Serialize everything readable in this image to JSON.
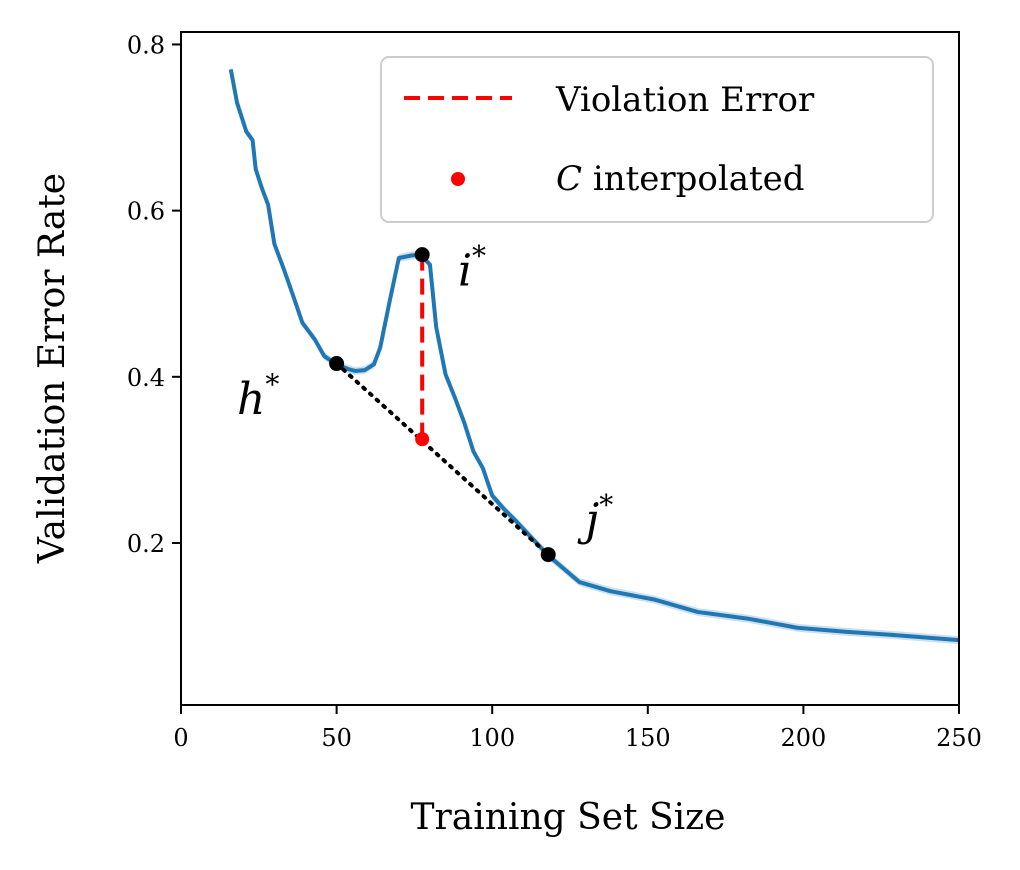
{
  "chart_data": {
    "type": "line",
    "xlabel": "Training Set Size",
    "ylabel": "Validation Error Rate",
    "xlim": [
      0,
      250
    ],
    "ylim": [
      0.005,
      0.815
    ],
    "xticks": [
      0,
      50,
      100,
      150,
      200,
      250
    ],
    "yticks": [
      0.2,
      0.4,
      0.6,
      0.8
    ],
    "xtick_labels": [
      "0",
      "50",
      "100",
      "150",
      "200",
      "250"
    ],
    "ytick_labels": [
      "0.2",
      "0.4",
      "0.6",
      "0.8"
    ],
    "grid": false,
    "legend_position": "top-right",
    "colors": {
      "curve": "#1f77b4",
      "band": "#b9d2e8",
      "violation": "#ff0000",
      "points": "#000000",
      "interp": "#ff0000"
    },
    "series": [
      {
        "name": "validation error",
        "x": [
          16,
          18,
          21,
          23,
          24,
          26,
          28,
          30,
          33,
          36,
          39,
          43,
          46,
          50,
          54,
          56,
          59,
          62,
          64,
          67,
          70,
          74,
          77,
          80,
          82,
          85,
          88,
          91,
          94,
          97,
          100,
          104,
          108,
          113,
          118,
          128,
          138,
          152,
          166,
          182,
          198,
          214,
          230,
          250
        ],
        "y": [
          0.77,
          0.73,
          0.695,
          0.685,
          0.65,
          0.627,
          0.607,
          0.56,
          0.53,
          0.498,
          0.465,
          0.445,
          0.425,
          0.415,
          0.409,
          0.407,
          0.408,
          0.415,
          0.435,
          0.49,
          0.543,
          0.546,
          0.547,
          0.535,
          0.46,
          0.403,
          0.375,
          0.345,
          0.31,
          0.29,
          0.257,
          0.24,
          0.225,
          0.205,
          0.185,
          0.153,
          0.142,
          0.132,
          0.117,
          0.109,
          0.098,
          0.093,
          0.089,
          0.083
        ]
      }
    ],
    "points": [
      {
        "name": "h",
        "label": "h",
        "sup": "*",
        "x": 50,
        "y": 0.416,
        "label_x": 18,
        "label_y": 0.355
      },
      {
        "name": "i",
        "label": "i",
        "sup": "*",
        "x": 77.5,
        "y": 0.547,
        "label_x": 89,
        "label_y": 0.51
      },
      {
        "name": "j",
        "label": "j",
        "sup": "*",
        "x": 118,
        "y": 0.186,
        "label_x": 130,
        "label_y": 0.21
      }
    ],
    "interpolated_point": {
      "x": 77.5,
      "y": 0.325
    },
    "legend": {
      "violation_label": "Violation Error",
      "interp_symbol": "C",
      "interp_label": " interpolated"
    }
  }
}
